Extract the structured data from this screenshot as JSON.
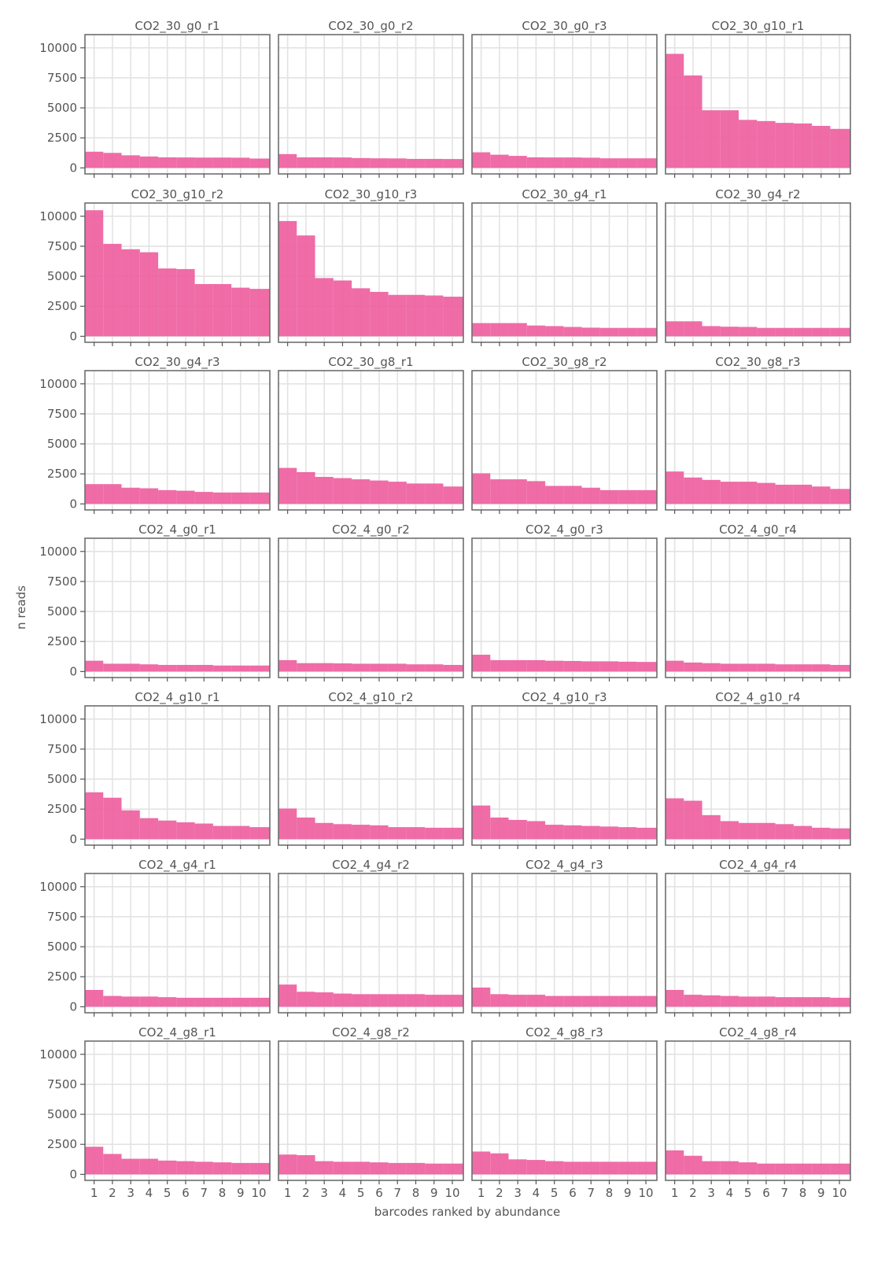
{
  "chart_data": {
    "type": "bar",
    "xlabel": "barcodes ranked by abundance",
    "ylabel": "n reads",
    "x": [
      1,
      2,
      3,
      4,
      5,
      6,
      7,
      8,
      9,
      10
    ],
    "x_tick_labels": [
      "1",
      "2",
      "3",
      "4",
      "5",
      "6",
      "7",
      "8",
      "9",
      "10"
    ],
    "ylim": [
      -500,
      11100
    ],
    "y_ticks": [
      0,
      2500,
      5000,
      7500,
      10000
    ],
    "y_tick_labels": [
      "0",
      "2500",
      "5000",
      "7500",
      "10000"
    ],
    "grid": true,
    "bar_color": "#ee5fa0",
    "facets": [
      {
        "name": "CO2_30_g0_r1",
        "values": [
          1350,
          1250,
          1050,
          950,
          880,
          870,
          860,
          860,
          850,
          780
        ]
      },
      {
        "name": "CO2_30_g0_r2",
        "values": [
          1150,
          880,
          880,
          870,
          820,
          800,
          790,
          750,
          750,
          740
        ]
      },
      {
        "name": "CO2_30_g0_r3",
        "values": [
          1300,
          1100,
          1000,
          880,
          870,
          870,
          850,
          800,
          800,
          800
        ]
      },
      {
        "name": "CO2_30_g10_r1",
        "values": [
          9500,
          7700,
          4800,
          4800,
          4000,
          3900,
          3750,
          3700,
          3500,
          3250
        ]
      },
      {
        "name": "CO2_30_g10_r2",
        "values": [
          10500,
          7700,
          7250,
          7000,
          5650,
          5600,
          4350,
          4350,
          4050,
          3950
        ]
      },
      {
        "name": "CO2_30_g10_r3",
        "values": [
          9600,
          8400,
          4850,
          4650,
          4000,
          3700,
          3450,
          3450,
          3400,
          3300
        ]
      },
      {
        "name": "CO2_30_g4_r1",
        "values": [
          1100,
          1100,
          1100,
          900,
          850,
          780,
          720,
          700,
          700,
          700
        ]
      },
      {
        "name": "CO2_30_g4_r2",
        "values": [
          1250,
          1250,
          850,
          800,
          780,
          700,
          700,
          700,
          700,
          700
        ]
      },
      {
        "name": "CO2_30_g4_r3",
        "values": [
          1650,
          1650,
          1350,
          1300,
          1150,
          1100,
          1000,
          950,
          950,
          950
        ]
      },
      {
        "name": "CO2_30_g8_r1",
        "values": [
          3000,
          2650,
          2250,
          2150,
          2050,
          1950,
          1850,
          1700,
          1700,
          1450
        ]
      },
      {
        "name": "CO2_30_g8_r2",
        "values": [
          2550,
          2050,
          2050,
          1900,
          1500,
          1500,
          1350,
          1150,
          1150,
          1150
        ]
      },
      {
        "name": "CO2_30_g8_r3",
        "values": [
          2700,
          2200,
          2000,
          1850,
          1850,
          1750,
          1600,
          1600,
          1450,
          1250
        ]
      },
      {
        "name": "CO2_4_g0_r1",
        "values": [
          900,
          650,
          650,
          600,
          550,
          550,
          550,
          500,
          500,
          500
        ]
      },
      {
        "name": "CO2_4_g0_r2",
        "values": [
          950,
          700,
          700,
          680,
          650,
          650,
          650,
          600,
          600,
          550
        ]
      },
      {
        "name": "CO2_4_g0_r3",
        "values": [
          1400,
          950,
          950,
          950,
          900,
          880,
          850,
          850,
          820,
          800
        ]
      },
      {
        "name": "CO2_4_g0_r4",
        "values": [
          900,
          750,
          700,
          650,
          650,
          650,
          600,
          600,
          600,
          550
        ]
      },
      {
        "name": "CO2_4_g10_r1",
        "values": [
          3900,
          3450,
          2400,
          1750,
          1550,
          1400,
          1300,
          1100,
          1100,
          1000
        ]
      },
      {
        "name": "CO2_4_g10_r2",
        "values": [
          2550,
          1800,
          1350,
          1250,
          1200,
          1150,
          1000,
          1000,
          950,
          950
        ]
      },
      {
        "name": "CO2_4_g10_r3",
        "values": [
          2800,
          1800,
          1600,
          1500,
          1200,
          1150,
          1100,
          1050,
          1000,
          950
        ]
      },
      {
        "name": "CO2_4_g10_r4",
        "values": [
          3400,
          3200,
          2000,
          1500,
          1350,
          1350,
          1250,
          1100,
          950,
          900
        ]
      },
      {
        "name": "CO2_4_g4_r1",
        "values": [
          1400,
          900,
          850,
          850,
          800,
          750,
          750,
          750,
          750,
          750
        ]
      },
      {
        "name": "CO2_4_g4_r2",
        "values": [
          1850,
          1250,
          1200,
          1100,
          1050,
          1050,
          1050,
          1050,
          1000,
          1000
        ]
      },
      {
        "name": "CO2_4_g4_r3",
        "values": [
          1600,
          1050,
          1000,
          1000,
          900,
          900,
          900,
          900,
          900,
          900
        ]
      },
      {
        "name": "CO2_4_g4_r4",
        "values": [
          1400,
          1000,
          950,
          900,
          850,
          850,
          800,
          800,
          800,
          750
        ]
      },
      {
        "name": "CO2_4_g8_r1",
        "values": [
          2300,
          1700,
          1300,
          1300,
          1150,
          1100,
          1050,
          1000,
          950,
          950
        ]
      },
      {
        "name": "CO2_4_g8_r2",
        "values": [
          1650,
          1600,
          1100,
          1050,
          1050,
          1000,
          950,
          950,
          900,
          900
        ]
      },
      {
        "name": "CO2_4_g8_r3",
        "values": [
          1900,
          1750,
          1250,
          1200,
          1100,
          1050,
          1050,
          1050,
          1050,
          1050
        ]
      },
      {
        "name": "CO2_4_g8_r4",
        "values": [
          2000,
          1550,
          1100,
          1100,
          1000,
          900,
          900,
          900,
          900,
          900
        ]
      }
    ]
  }
}
